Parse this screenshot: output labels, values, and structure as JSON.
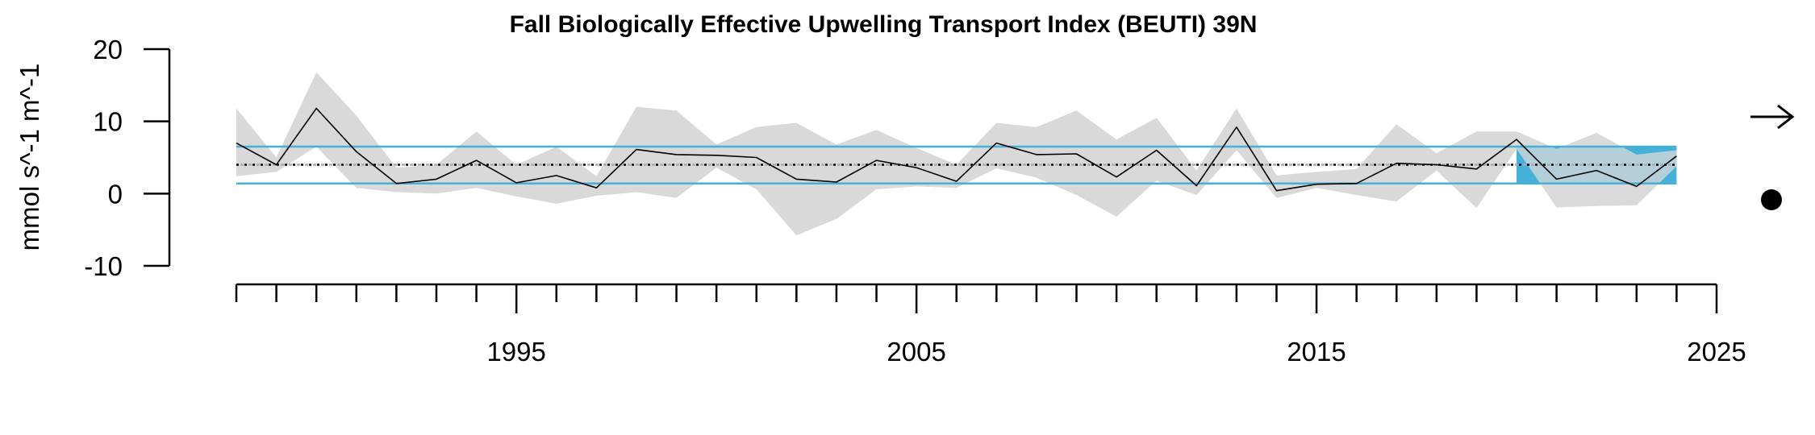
{
  "chart_data": {
    "type": "line",
    "title": "Fall Biologically Effective Upwelling Transport Index (BEUTI) 39N",
    "xlabel": "",
    "ylabel": "mmol s^-1 m^-1",
    "ylim": [
      -10,
      20
    ],
    "xlim": [
      1988,
      2025
    ],
    "yticks": [
      "-10",
      "0",
      "10",
      "20"
    ],
    "xticks": [
      {
        "value": 1995,
        "label": "1995"
      },
      {
        "value": 2005,
        "label": "2005"
      },
      {
        "value": 2015,
        "label": "2015"
      },
      {
        "value": 2025,
        "label": "2025"
      }
    ],
    "x": [
      1988,
      1989,
      1990,
      1991,
      1992,
      1993,
      1994,
      1995,
      1996,
      1997,
      1998,
      1999,
      2000,
      2001,
      2002,
      2003,
      2004,
      2005,
      2006,
      2007,
      2008,
      2009,
      2010,
      2011,
      2012,
      2013,
      2014,
      2015,
      2016,
      2017,
      2018,
      2019,
      2020,
      2021,
      2022,
      2023,
      2024
    ],
    "series": [
      {
        "role": "mean",
        "values": [
          7.0,
          4.0,
          11.8,
          5.8,
          1.4,
          2.0,
          4.6,
          1.5,
          2.5,
          0.8,
          6.1,
          5.4,
          5.3,
          5.0,
          2.0,
          1.6,
          4.6,
          3.6,
          1.7,
          7.0,
          5.4,
          5.5,
          2.3,
          6.0,
          1.1,
          9.2,
          0.4,
          1.3,
          1.4,
          4.2,
          4.0,
          3.4,
          7.5,
          2.0,
          3.2,
          1.0,
          5.2
        ]
      },
      {
        "role": "upper",
        "values": [
          11.8,
          5.0,
          16.8,
          10.8,
          3.6,
          4.0,
          8.6,
          4.0,
          6.5,
          2.4,
          12.0,
          11.5,
          6.8,
          9.2,
          9.8,
          6.8,
          8.8,
          6.3,
          4.0,
          9.8,
          9.2,
          11.5,
          7.5,
          10.5,
          3.2,
          11.8,
          2.5,
          3.0,
          3.4,
          9.6,
          5.6,
          8.6,
          8.6,
          6.2,
          8.4,
          5.4,
          6.0
        ]
      },
      {
        "role": "lower",
        "values": [
          2.4,
          3.0,
          6.5,
          0.8,
          0.2,
          0.0,
          0.8,
          -0.4,
          -1.4,
          -0.3,
          0.2,
          -0.6,
          3.6,
          0.6,
          -5.8,
          -3.5,
          0.6,
          1.0,
          0.8,
          3.5,
          2.2,
          -0.2,
          -3.2,
          1.8,
          -0.2,
          6.0,
          -0.6,
          0.8,
          -0.2,
          -1.1,
          3.2,
          -2.0,
          6.2,
          -1.9,
          -1.7,
          -1.6,
          3.8
        ]
      }
    ],
    "reference": {
      "long_term_mean": 4.0,
      "upper_sd": 6.5,
      "lower_sd": 1.4
    },
    "recent_window": {
      "start": 2020,
      "end": 2024
    },
    "status": {
      "trend": "flat",
      "mean_status": "within"
    },
    "colors": {
      "band": "#d9d9d9",
      "sd_line": "#45b0d8",
      "recent_fill": "#45b0d8",
      "mean_line": "#000000"
    },
    "grid": false,
    "legend": "none"
  }
}
